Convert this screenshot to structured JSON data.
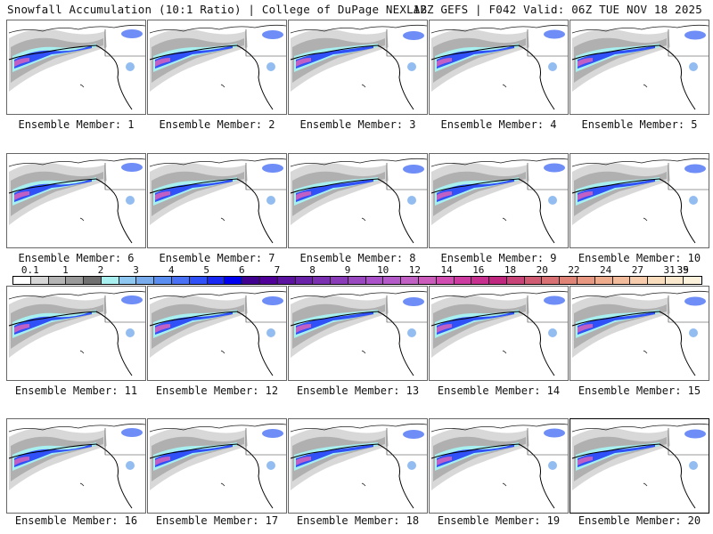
{
  "header": {
    "title_left": "Snowfall Accumulation (10:1 Ratio) | College of DuPage NEXLAB",
    "title_right": "12Z GEFS | F042 Valid: 06Z TUE NOV 18 2025"
  },
  "panels": [
    {
      "label": "Ensemble Member: 1"
    },
    {
      "label": "Ensemble Member: 2"
    },
    {
      "label": "Ensemble Member: 3"
    },
    {
      "label": "Ensemble Member: 4"
    },
    {
      "label": "Ensemble Member: 5"
    },
    {
      "label": "Ensemble Member: 6"
    },
    {
      "label": "Ensemble Member: 7"
    },
    {
      "label": "Ensemble Member: 8"
    },
    {
      "label": "Ensemble Member: 9"
    },
    {
      "label": "Ensemble Member: 10"
    },
    {
      "label": "Ensemble Member: 11"
    },
    {
      "label": "Ensemble Member: 12"
    },
    {
      "label": "Ensemble Member: 13"
    },
    {
      "label": "Ensemble Member: 14"
    },
    {
      "label": "Ensemble Member: 15"
    },
    {
      "label": "Ensemble Member: 16"
    },
    {
      "label": "Ensemble Member: 17"
    },
    {
      "label": "Ensemble Member: 18"
    },
    {
      "label": "Ensemble Member: 19"
    },
    {
      "label": "Ensemble Member: 20"
    }
  ],
  "colorbar": {
    "tick_labels": [
      "0.1",
      "1",
      "2",
      "3",
      "4",
      "5",
      "6",
      "7",
      "8",
      "9",
      "10",
      "12",
      "14",
      "16",
      "18",
      "20",
      "22",
      "24",
      "27",
      "31",
      "35",
      "39"
    ],
    "colors": [
      "#ffffff",
      "#d6d6d6",
      "#b4b4b4",
      "#9a9a9a",
      "#707070",
      "#a8f0f0",
      "#8ec8f0",
      "#78acec",
      "#5a8ef0",
      "#4a70f4",
      "#3050f8",
      "#1a28f4",
      "#0000f0",
      "#400090",
      "#500098",
      "#5c14a0",
      "#6a22a8",
      "#7a30b0",
      "#8a3cb8",
      "#9a48c0",
      "#aa50c8",
      "#b45ac8",
      "#c060c4",
      "#cc5cbc",
      "#d04cb0",
      "#cc3ca0",
      "#c83090",
      "#c02880",
      "#c84478",
      "#d05c74",
      "#d87074",
      "#e08478",
      "#e89880",
      "#eeac8c",
      "#f2bc9c",
      "#f6ccac",
      "#f8dcbc",
      "#fae8cc",
      "#fcf2dc"
    ]
  }
}
